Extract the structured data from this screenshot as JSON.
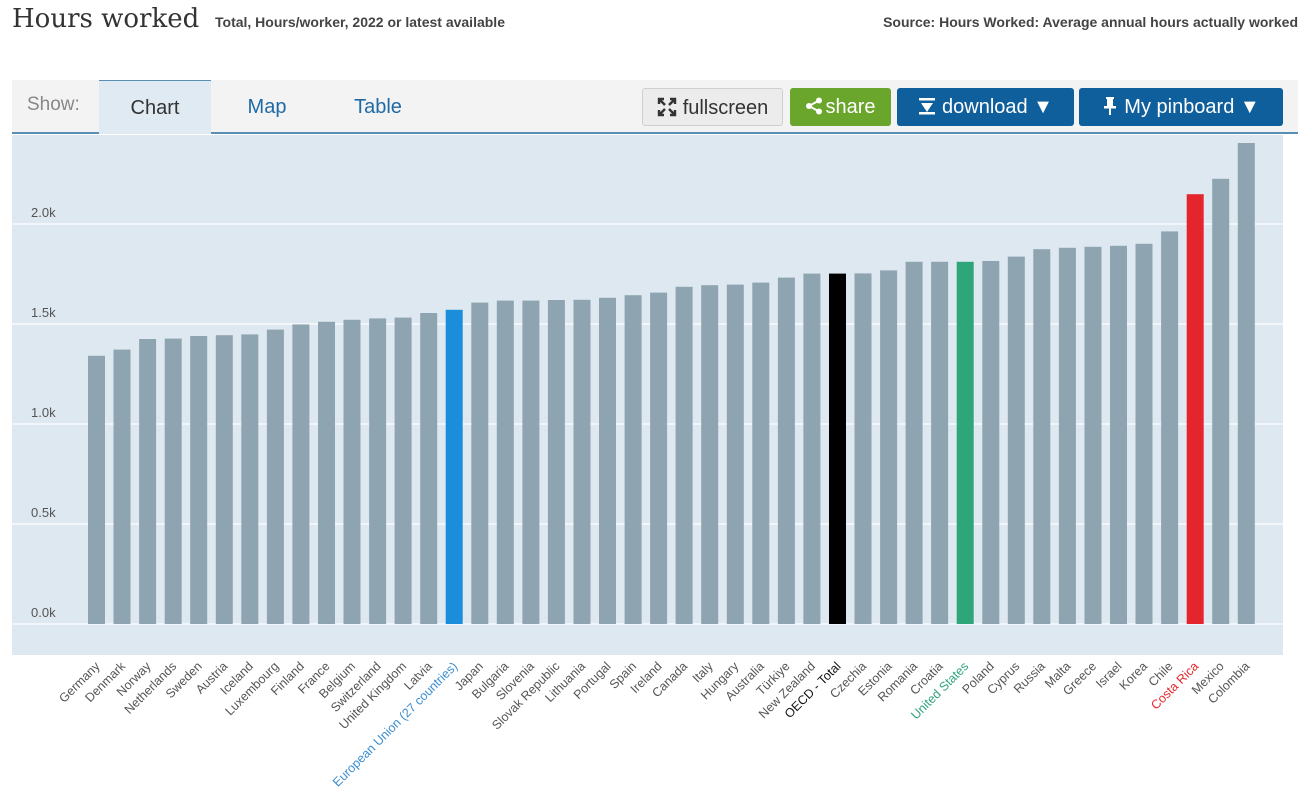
{
  "header": {
    "title": "Hours worked",
    "subtitle": "Total, Hours/worker, 2022 or latest available",
    "source": "Source: Hours Worked: Average annual hours actually worked"
  },
  "toolbar": {
    "show_label": "Show:",
    "tabs": [
      {
        "label": "Chart",
        "active": true
      },
      {
        "label": "Map",
        "active": false
      },
      {
        "label": "Table",
        "active": false
      }
    ],
    "fullscreen_label": "fullscreen",
    "share_label": "share",
    "download_label": "download ▼",
    "pinboard_label": "My pinboard ▼"
  },
  "colors": {
    "default_bar": "#8fa4b1",
    "eu": "#1a8edb",
    "oecd": "#000000",
    "us": "#2fa57a",
    "costa_rica": "#e4262c"
  },
  "chart_data": {
    "type": "bar",
    "title": "Hours worked",
    "xlabel": "",
    "ylabel": "",
    "ylim": [
      0,
      2450
    ],
    "y_ticks": [
      {
        "value": 0,
        "label": "0.0k"
      },
      {
        "value": 500,
        "label": "0.5k"
      },
      {
        "value": 1000,
        "label": "1.0k"
      },
      {
        "value": 1500,
        "label": "1.5k"
      },
      {
        "value": 2000,
        "label": "2.0k"
      }
    ],
    "categories": [
      "Germany",
      "Denmark",
      "Norway",
      "Netherlands",
      "Sweden",
      "Austria",
      "Iceland",
      "Luxembourg",
      "Finland",
      "France",
      "Belgium",
      "Switzerland",
      "United Kingdom",
      "Latvia",
      "European Union (27 countries)",
      "Japan",
      "Bulgaria",
      "Slovenia",
      "Slovak Republic",
      "Lithuania",
      "Portugal",
      "Spain",
      "Ireland",
      "Canada",
      "Italy",
      "Hungary",
      "Australia",
      "Türkiye",
      "New Zealand",
      "OECD - Total",
      "Czechia",
      "Estonia",
      "Romania",
      "Croatia",
      "United States",
      "Poland",
      "Cyprus",
      "Russia",
      "Malta",
      "Greece",
      "Israel",
      "Korea",
      "Chile",
      "Costa Rica",
      "Mexico",
      "Colombia"
    ],
    "values": [
      1341,
      1372,
      1425,
      1427,
      1440,
      1444,
      1448,
      1472,
      1498,
      1511,
      1521,
      1528,
      1532,
      1555,
      1571,
      1607,
      1617,
      1617,
      1620,
      1621,
      1631,
      1644,
      1657,
      1686,
      1694,
      1697,
      1707,
      1732,
      1752,
      1752,
      1753,
      1768,
      1811,
      1811,
      1811,
      1815,
      1837,
      1874,
      1881,
      1886,
      1891,
      1901,
      1963,
      2149,
      2226,
      2405
    ],
    "highlights": {
      "European Union (27 countries)": "eu",
      "OECD - Total": "oecd",
      "United States": "us",
      "Costa Rica": "costa_rica"
    }
  }
}
